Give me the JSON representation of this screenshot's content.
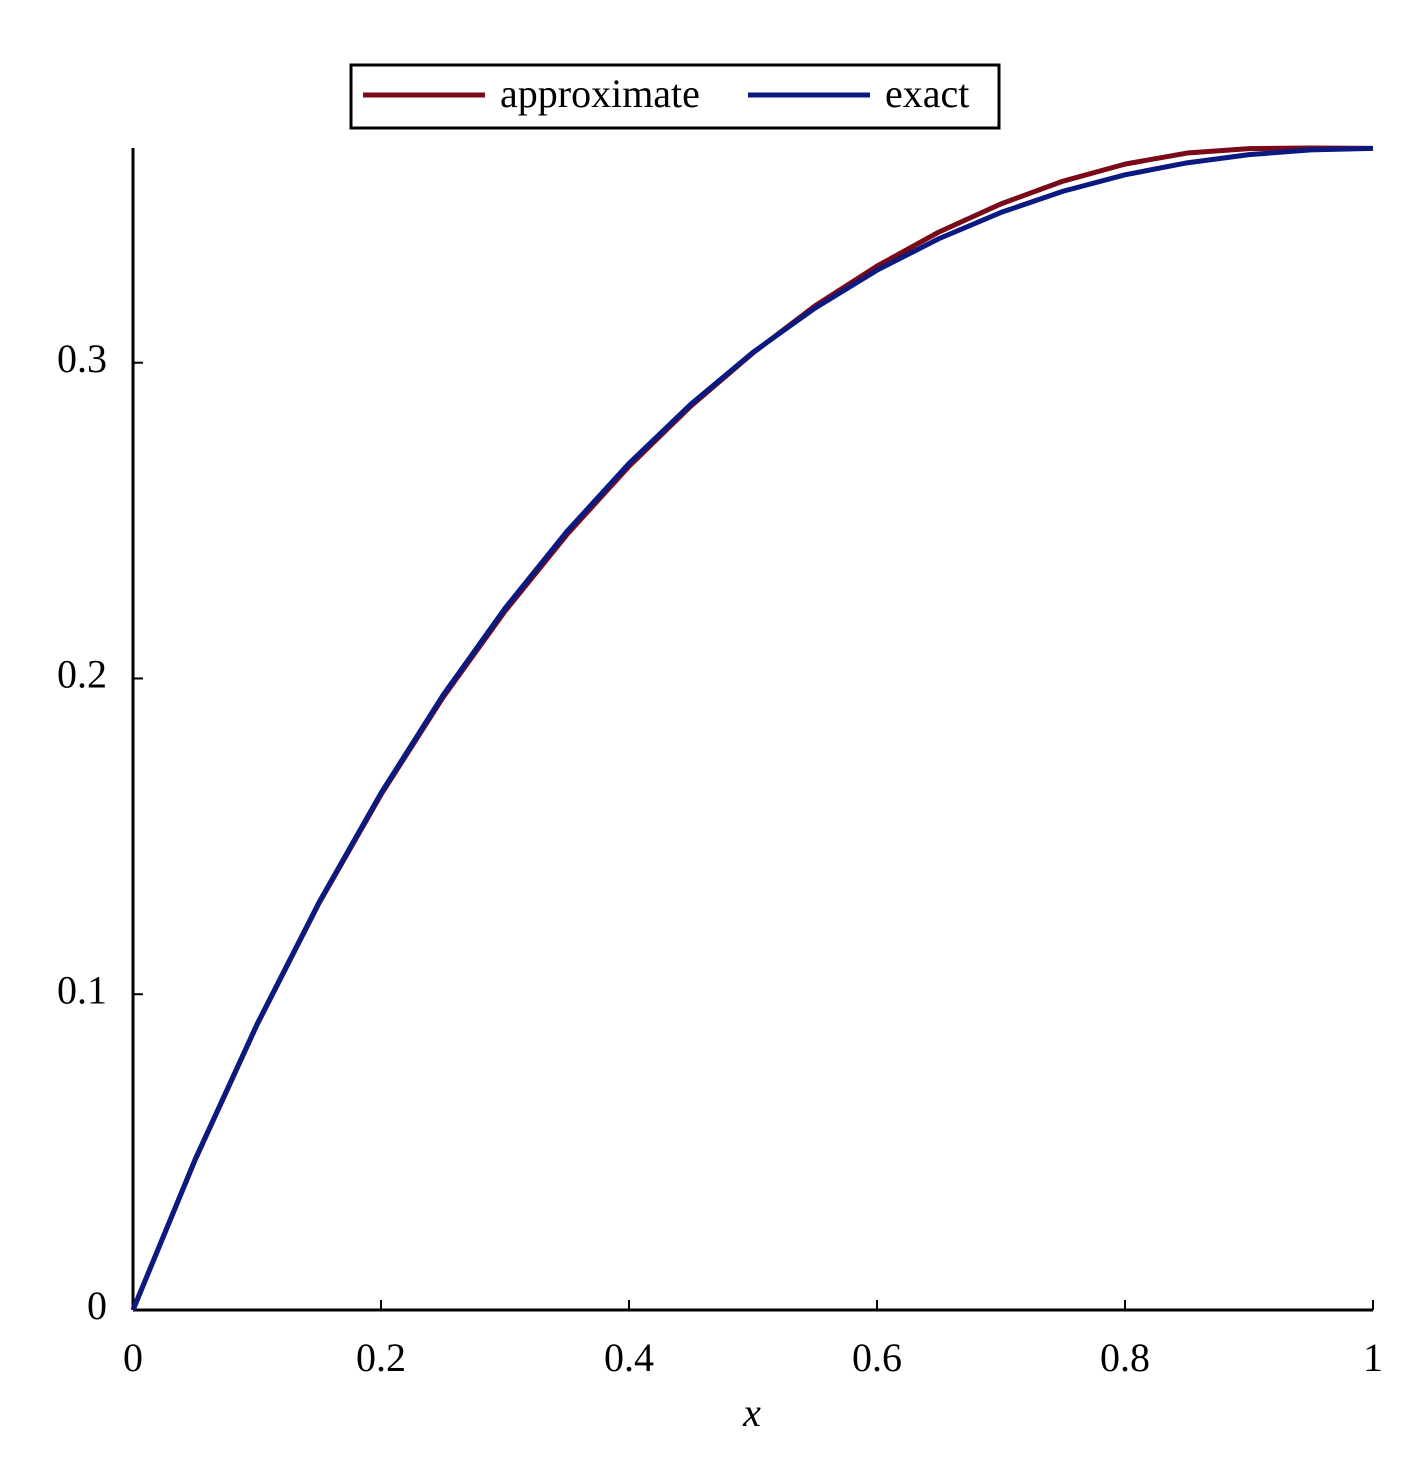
{
  "chart_data": {
    "type": "line",
    "x_label": "x",
    "x": [
      0,
      0.05,
      0.1,
      0.15,
      0.2,
      0.25,
      0.3,
      0.35,
      0.4,
      0.45,
      0.5,
      0.55,
      0.6,
      0.65,
      0.7,
      0.75,
      0.8,
      0.85,
      0.9,
      0.95,
      1
    ],
    "series": [
      {
        "name": "approximate",
        "color": "#7a0a1a",
        "values": [
          0,
          0.0474,
          0.0903,
          0.1288,
          0.1632,
          0.194,
          0.2213,
          0.2456,
          0.2672,
          0.2863,
          0.3031,
          0.318,
          0.3306,
          0.3414,
          0.3503,
          0.3575,
          0.3629,
          0.3664,
          0.3678,
          0.368,
          0.3679
        ]
      },
      {
        "name": "exact",
        "color": "#0a1a80",
        "values": [
          0,
          0.0476,
          0.0905,
          0.1291,
          0.1637,
          0.1947,
          0.2222,
          0.2466,
          0.2681,
          0.2869,
          0.3033,
          0.3173,
          0.3293,
          0.3393,
          0.3476,
          0.3543,
          0.3595,
          0.3633,
          0.3659,
          0.3674,
          0.3679
        ]
      }
    ],
    "xlim": [
      0,
      1
    ],
    "xticks": [
      0,
      0.2,
      0.4,
      0.6,
      0.8,
      1
    ],
    "ylim": [
      0,
      0.368
    ],
    "yticks": [
      0,
      0.1,
      0.2,
      0.3
    ],
    "legend": "top"
  }
}
